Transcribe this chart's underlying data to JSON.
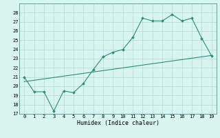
{
  "xlabel": "Humidex (Indice chaleur)",
  "ylabel": "",
  "x": [
    0,
    1,
    2,
    3,
    4,
    5,
    6,
    7,
    8,
    9,
    10,
    11,
    12,
    13,
    14,
    15,
    16,
    17,
    18,
    19
  ],
  "y_curve": [
    21,
    19.4,
    19.4,
    17.3,
    19.5,
    19.3,
    20.3,
    21.8,
    23.2,
    23.7,
    24.0,
    25.3,
    27.4,
    27.1,
    27.1,
    27.8,
    27.1,
    27.4,
    25.2,
    23.3
  ],
  "y_line": [
    20.5,
    20.65,
    20.8,
    20.95,
    21.1,
    21.25,
    21.4,
    21.55,
    21.7,
    21.85,
    22.0,
    22.15,
    22.3,
    22.45,
    22.6,
    22.75,
    22.9,
    23.05,
    23.2,
    23.35
  ],
  "line_color": "#2e8b7a",
  "curve_color": "#2e8b7a",
  "bg_color": "#d8f5f0",
  "grid_color": "#b8ddd8",
  "ylim": [
    17,
    29
  ],
  "yticks": [
    17,
    18,
    19,
    20,
    21,
    22,
    23,
    24,
    25,
    26,
    27,
    28
  ],
  "xlim": [
    -0.5,
    19.5
  ],
  "xticks": [
    0,
    1,
    2,
    3,
    4,
    5,
    6,
    7,
    8,
    9,
    10,
    11,
    12,
    13,
    14,
    15,
    16,
    17,
    18,
    19
  ]
}
